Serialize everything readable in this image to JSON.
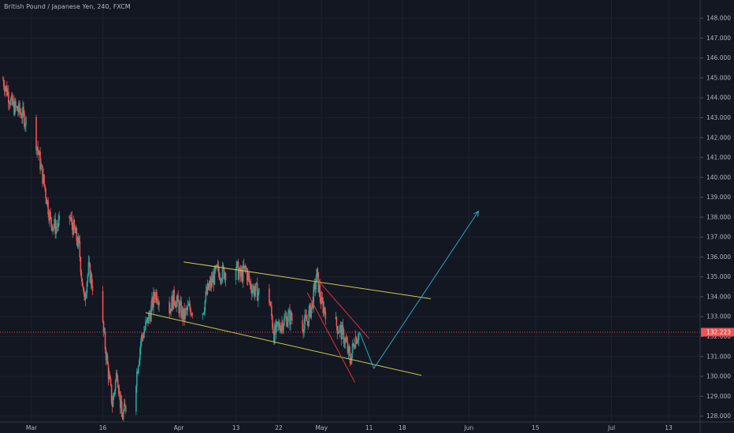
{
  "colors": {
    "background": "#131722",
    "grid": "#1e2230",
    "text": "#b2b5be",
    "up": "#26a69a",
    "down": "#ef5350",
    "channel_line": "#c9cc4a",
    "red_line": "#e0313e",
    "projection": "#2aa8c4",
    "price_marker": "#ef5350"
  },
  "chart_data": {
    "type": "candlestick",
    "title": "British Pound / Japanese Yen, 240, FXCM",
    "symbol": "British Pound / Japanese Yen",
    "interval": "240",
    "source": "FXCM",
    "y_axis": {
      "position": "right",
      "range": [
        127.7,
        148.4
      ],
      "ticks": [
        "128.000",
        "129.000",
        "130.000",
        "131.000",
        "132.000",
        "133.000",
        "134.000",
        "135.000",
        "136.000",
        "137.000",
        "138.000",
        "139.000",
        "140.000",
        "141.000",
        "142.000",
        "143.000",
        "144.000",
        "145.000",
        "146.000",
        "147.000",
        "148.000"
      ]
    },
    "x_axis": {
      "range": [
        "2020-02-24",
        "2020-07-15"
      ],
      "labels": [
        {
          "date": "2020-03-01",
          "text": "Mar"
        },
        {
          "date": "2020-03-16",
          "text": "16"
        },
        {
          "date": "2020-04-01",
          "text": "Apr"
        },
        {
          "date": "2020-04-13",
          "text": "13"
        },
        {
          "date": "2020-04-22",
          "text": "22"
        },
        {
          "date": "2020-05-01",
          "text": "May"
        },
        {
          "date": "2020-05-11",
          "text": "11"
        },
        {
          "date": "2020-05-18",
          "text": "18"
        },
        {
          "date": "2020-06-01",
          "text": "Jun"
        },
        {
          "date": "2020-06-15",
          "text": "15"
        },
        {
          "date": "2020-07-01",
          "text": "Jul"
        },
        {
          "date": "2020-07-13",
          "text": "13"
        }
      ]
    },
    "grid": true,
    "last_price": 132.22,
    "last_price_label": "132.223",
    "price_path": [
      [
        "2020-02-24",
        144.9
      ],
      [
        "2020-02-26",
        143.6
      ],
      [
        "2020-02-28",
        143.2
      ],
      [
        "2020-03-02",
        141.8
      ],
      [
        "2020-03-04",
        139.2
      ],
      [
        "2020-03-05",
        137.8
      ],
      [
        "2020-03-06",
        137.5
      ],
      [
        "2020-03-09",
        138.0
      ],
      [
        "2020-03-10",
        137.3
      ],
      [
        "2020-03-11",
        136.5
      ],
      [
        "2020-03-12",
        133.8
      ],
      [
        "2020-03-13",
        135.4
      ],
      [
        "2020-03-16",
        132.5
      ],
      [
        "2020-03-17",
        130.5
      ],
      [
        "2020-03-18",
        128.6
      ],
      [
        "2020-03-19",
        130.3
      ],
      [
        "2020-03-20",
        127.9
      ],
      [
        "2020-03-23",
        129.9
      ],
      [
        "2020-03-24",
        131.8
      ],
      [
        "2020-03-26",
        133.2
      ],
      [
        "2020-03-27",
        134.2
      ],
      [
        "2020-03-30",
        133.4
      ],
      [
        "2020-03-31",
        134.0
      ],
      [
        "2020-04-02",
        133.0
      ],
      [
        "2020-04-03",
        133.4
      ],
      [
        "2020-04-06",
        133.3
      ],
      [
        "2020-04-07",
        134.3
      ],
      [
        "2020-04-08",
        134.8
      ],
      [
        "2020-04-09",
        135.3
      ],
      [
        "2020-04-10",
        135.2
      ],
      [
        "2020-04-13",
        135.5
      ],
      [
        "2020-04-14",
        135.0
      ],
      [
        "2020-04-15",
        135.4
      ],
      [
        "2020-04-16",
        134.6
      ],
      [
        "2020-04-17",
        134.3
      ],
      [
        "2020-04-20",
        133.9
      ],
      [
        "2020-04-21",
        132.1
      ],
      [
        "2020-04-22",
        132.5
      ],
      [
        "2020-04-23",
        132.8
      ],
      [
        "2020-04-24",
        133.0
      ],
      [
        "2020-04-27",
        132.6
      ],
      [
        "2020-04-28",
        132.8
      ],
      [
        "2020-04-29",
        133.6
      ],
      [
        "2020-04-30",
        135.1
      ],
      [
        "2020-05-01",
        133.6
      ],
      [
        "2020-05-04",
        132.6
      ],
      [
        "2020-05-05",
        132.3
      ],
      [
        "2020-05-06",
        131.8
      ],
      [
        "2020-05-07",
        130.8
      ],
      [
        "2020-05-08",
        131.9
      ],
      [
        "2020-05-09",
        132.22
      ]
    ],
    "annotations": [
      {
        "type": "trend_line",
        "color": "channel_line",
        "from": [
          "2020-04-02",
          135.75
        ],
        "to": [
          "2020-05-24",
          133.9
        ]
      },
      {
        "type": "trend_line",
        "color": "channel_line",
        "from": [
          "2020-03-25",
          133.2
        ],
        "to": [
          "2020-05-22",
          130.05
        ]
      },
      {
        "type": "trend_line",
        "color": "red_line",
        "from": [
          "2020-04-30",
          134.9
        ],
        "to": [
          "2020-05-11",
          131.9
        ]
      },
      {
        "type": "trend_line",
        "color": "red_line",
        "from": [
          "2020-04-28",
          134.2
        ],
        "to": [
          "2020-05-08",
          129.7
        ]
      },
      {
        "type": "projection_arrow",
        "color": "projection",
        "points": [
          [
            "2020-05-09",
            132.22
          ],
          [
            "2020-05-12",
            130.4
          ],
          [
            "2020-06-03",
            138.3
          ]
        ]
      }
    ]
  }
}
